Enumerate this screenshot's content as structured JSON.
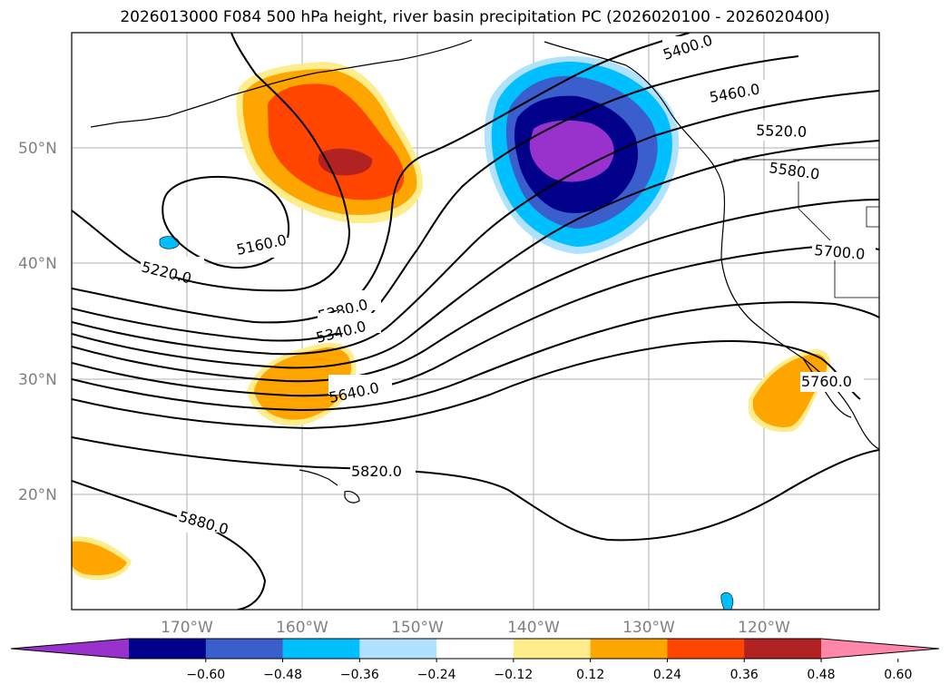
{
  "title": "2026013000 F084 500 hPa height, river basin precipitation PC (2026020100 - 2026020400)",
  "axes": {
    "lat_labels": [
      "50°N",
      "40°N",
      "30°N",
      "20°N"
    ],
    "lon_labels": [
      "170°W",
      "160°W",
      "150°W",
      "140°W",
      "130°W",
      "120°W"
    ],
    "lon_range": [
      180,
      110
    ],
    "lat_range": [
      10,
      60
    ],
    "grid": true
  },
  "contour_labels": [
    "5160.0",
    "5220.0",
    "5280.0",
    "5340.0",
    "5400.0",
    "5460.0",
    "5520.0",
    "5580.0",
    "5640.0",
    "5700.0",
    "5760.0",
    "5820.0",
    "5880.0"
  ],
  "colorbar": {
    "ticks": [
      "−0.60",
      "−0.48",
      "−0.36",
      "−0.24",
      "−0.12",
      "0.12",
      "0.24",
      "0.36",
      "0.48",
      "0.60"
    ],
    "colors": [
      "#9932cc",
      "#00008b",
      "#3a5fcd",
      "#00bfff",
      "#b0e2ff",
      "#ffffff",
      "#ffec8b",
      "#ffa500",
      "#ff4500",
      "#b22222",
      "#ff88aa"
    ],
    "extend": "both"
  },
  "colors": {
    "grid": "#b0b0b0",
    "contour": "#000000",
    "axis_text": "#808080"
  }
}
